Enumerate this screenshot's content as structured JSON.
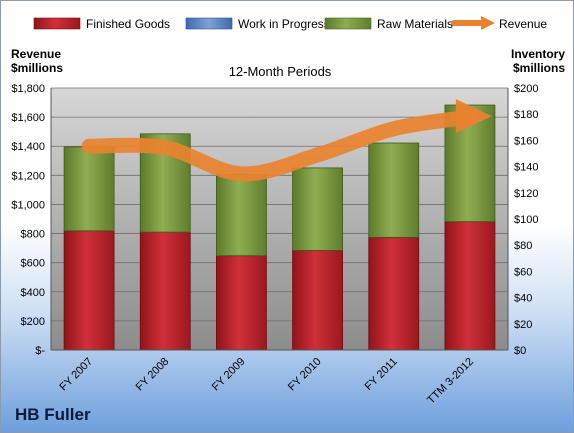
{
  "chart_data": {
    "type": "bar",
    "subtitle": "12-Month Periods",
    "company": "HB Fuller",
    "left_axis": {
      "label_line1": "Revenue",
      "label_line2": "$millions",
      "range": [
        0,
        1800
      ],
      "ticks": [
        "$-",
        "$200",
        "$400",
        "$600",
        "$800",
        "$1,000",
        "$1,200",
        "$1,400",
        "$1,600",
        "$1,800"
      ]
    },
    "right_axis": {
      "label_line1": "Inventory",
      "label_line2": "$millions",
      "range": [
        0,
        200
      ],
      "ticks": [
        "$0",
        "$20",
        "$40",
        "$60",
        "$80",
        "$100",
        "$120",
        "$140",
        "$160",
        "$180",
        "$200"
      ]
    },
    "categories": [
      "FY 2007",
      "FY 2008",
      "FY 2009",
      "FY 2010",
      "FY 2011",
      "TTM 3-2012"
    ],
    "series": [
      {
        "name": "Finished Goods",
        "axis": "right",
        "values": [
          91,
          90,
          72,
          76,
          86,
          98
        ],
        "color": "#c0282c"
      },
      {
        "name": "Work in Progress",
        "axis": "right",
        "values": [
          0,
          0,
          0,
          0,
          0,
          0
        ],
        "color": "#5b86c5"
      },
      {
        "name": "Raw Materials",
        "axis": "right",
        "values": [
          64,
          75,
          62,
          63,
          72,
          89
        ],
        "color": "#7a9a3c"
      },
      {
        "name": "Revenue",
        "axis": "left",
        "type": "line",
        "values": [
          1400,
          1390,
          1210,
          1340,
          1520,
          1600
        ],
        "color": "#e9822f"
      }
    ],
    "grid": true,
    "legend_position": "top"
  }
}
